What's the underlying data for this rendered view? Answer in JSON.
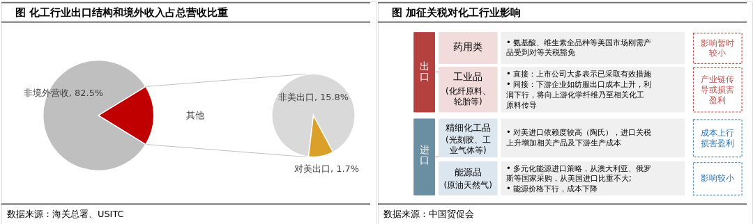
{
  "chart_data": [
    {
      "type": "pie",
      "title": "图    化工行业出口结构和境外收入占总营收比重",
      "categories": [
        "非境外营收",
        "其他"
      ],
      "values": [
        82.5,
        17.5
      ],
      "colors": [
        "#bfbfbf",
        "#c00000"
      ],
      "value_labels": [
        "82.5%",
        null
      ],
      "annotations": [
        "数据来源：海关总署、USITC"
      ]
    },
    {
      "type": "pie",
      "categories": [
        "非美出口",
        "对美出口"
      ],
      "values": [
        15.8,
        1.7
      ],
      "colors": [
        "#d9d9d9",
        "#daa02a"
      ],
      "value_labels": [
        "15.8%",
        "1.7%"
      ]
    },
    {
      "type": "other",
      "title": "图    加征关税对化工行业影响",
      "annotations": [
        "出口",
        "药用类",
        "• 氨基酸、维生素全品种等美国市场刚需产品受到对等关税豁免",
        "影响暂时较小",
        "工业品",
        "(化纤原料、轮胎等)",
        "• 直接：上市公司大多表示已采取有效措施",
        "• 间接：下游企业如纺服出口成本上升，利润下行，将向上游化学纤维乃至相关化工原料传导",
        "产业链传导或损害盈利",
        "进口",
        "精细化工品",
        "(光刻胶、工业气体等)",
        "• 对美进口依赖度较高（陶氏），进口关税上升增加相关产品及下游生产成本",
        "成本上行损害盈利",
        "能源品",
        "(原油天然气)",
        "• 多元化能源进口策略，从澳大利亚、俄罗斯等国家采购，从美国进口比重不大;",
        "• 能源价格下行，成本下降",
        "影响较小",
        "数据来源：中国贸促会"
      ]
    }
  ]
}
